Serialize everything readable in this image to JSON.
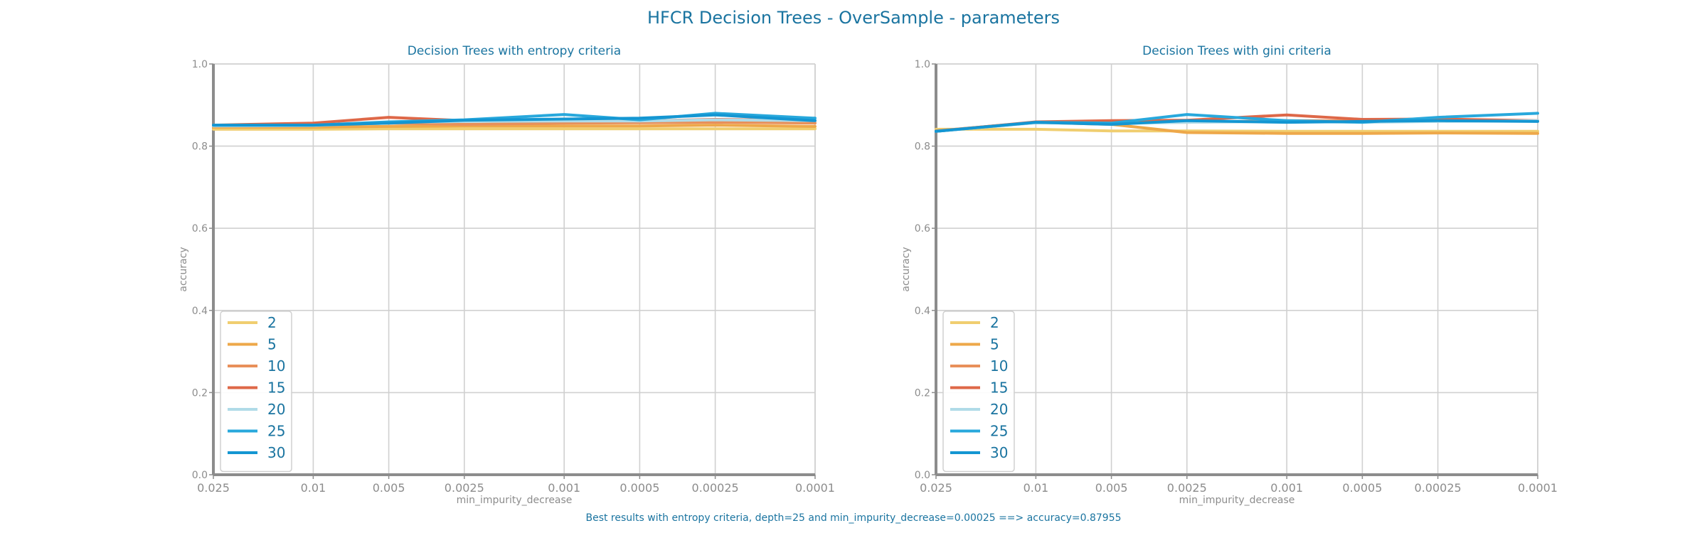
{
  "figure": {
    "title": "HFCR Decision Trees - OverSample - parameters",
    "footer": "Best results with entropy criteria, depth=25 and min_impurity_decrease=0.00025 ==> accuracy=0.87955"
  },
  "series_colors": {
    "2": "#f0ce70",
    "5": "#eea84a",
    "10": "#e8905a",
    "15": "#de6848",
    "20": "#b0dbe8",
    "25": "#28a8dc",
    "30": "#1496d2"
  },
  "chart_data": [
    {
      "type": "line",
      "title": "Decision Trees with entropy criteria",
      "xlabel": "min_impurity_decrease",
      "ylabel": "accuracy",
      "ylim": [
        0,
        1
      ],
      "yticks": [
        "0.0",
        "0.2",
        "0.4",
        "0.6",
        "0.8",
        "1.0"
      ],
      "x": [
        0.025,
        0.01,
        0.005,
        0.0025,
        0.001,
        0.0005,
        0.00025,
        0.0001
      ],
      "xtick_labels": [
        "0.025",
        "0.01",
        "0.005",
        "0.0025",
        "0.001",
        "0.0005",
        "0.00025",
        "0.0001"
      ],
      "grid": true,
      "legend_position": "lower-left",
      "series": [
        {
          "name": "2",
          "values": [
            0.841,
            0.841,
            0.842,
            0.842,
            0.842,
            0.842,
            0.842,
            0.842
          ]
        },
        {
          "name": "5",
          "values": [
            0.846,
            0.846,
            0.848,
            0.849,
            0.849,
            0.849,
            0.851,
            0.848
          ]
        },
        {
          "name": "10",
          "values": [
            0.849,
            0.851,
            0.856,
            0.853,
            0.856,
            0.857,
            0.858,
            0.856
          ]
        },
        {
          "name": "15",
          "values": [
            0.851,
            0.856,
            0.87,
            0.862,
            0.862,
            0.861,
            0.865,
            0.862
          ]
        },
        {
          "name": "20",
          "values": [
            0.849,
            0.85,
            0.858,
            0.86,
            0.861,
            0.861,
            0.864,
            0.862
          ]
        },
        {
          "name": "25",
          "values": [
            0.851,
            0.851,
            0.859,
            0.864,
            0.877,
            0.864,
            0.88,
            0.868
          ]
        },
        {
          "name": "30",
          "values": [
            0.851,
            0.851,
            0.856,
            0.863,
            0.866,
            0.868,
            0.876,
            0.862
          ]
        }
      ]
    },
    {
      "type": "line",
      "title": "Decision Trees with gini criteria",
      "xlabel": "min_impurity_decrease",
      "ylabel": "accuracy",
      "ylim": [
        0,
        1
      ],
      "yticks": [
        "0.0",
        "0.2",
        "0.4",
        "0.6",
        "0.8",
        "1.0"
      ],
      "x": [
        0.025,
        0.01,
        0.005,
        0.0025,
        0.001,
        0.0005,
        0.00025,
        0.0001
      ],
      "xtick_labels": [
        "0.025",
        "0.01",
        "0.005",
        "0.0025",
        "0.001",
        "0.0005",
        "0.00025",
        "0.0001"
      ],
      "grid": true,
      "legend_position": "lower-left",
      "series": [
        {
          "name": "2",
          "values": [
            0.841,
            0.841,
            0.837,
            0.837,
            0.836,
            0.836,
            0.836,
            0.836
          ]
        },
        {
          "name": "5",
          "values": [
            0.837,
            0.858,
            0.853,
            0.833,
            0.831,
            0.831,
            0.832,
            0.831
          ]
        },
        {
          "name": "10",
          "values": [
            0.837,
            0.858,
            0.858,
            0.858,
            0.862,
            0.861,
            0.862,
            0.861
          ]
        },
        {
          "name": "15",
          "values": [
            0.836,
            0.859,
            0.862,
            0.863,
            0.876,
            0.865,
            0.866,
            0.862
          ]
        },
        {
          "name": "20",
          "values": [
            0.836,
            0.857,
            0.855,
            0.858,
            0.86,
            0.858,
            0.86,
            0.862
          ]
        },
        {
          "name": "25",
          "values": [
            0.836,
            0.858,
            0.856,
            0.877,
            0.862,
            0.858,
            0.87,
            0.88
          ]
        },
        {
          "name": "30",
          "values": [
            0.836,
            0.858,
            0.853,
            0.862,
            0.858,
            0.86,
            0.862,
            0.86
          ]
        }
      ]
    }
  ]
}
